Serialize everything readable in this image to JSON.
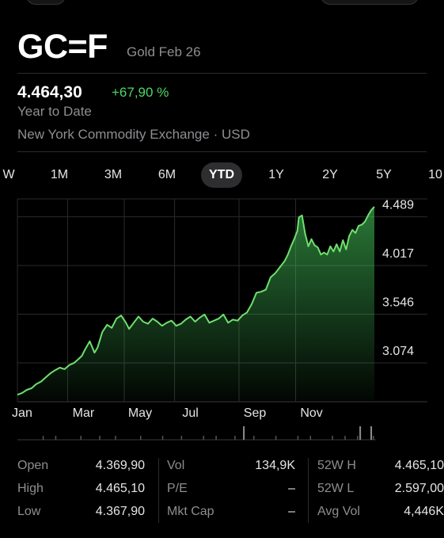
{
  "header": {
    "ticker": "GC=F",
    "subtitle": "Gold Feb 26",
    "price": "4.464,30",
    "change": "+67,90 %",
    "period_label": "Year to Date",
    "exchange": "New York Commodity Exchange · USD"
  },
  "tabs": [
    {
      "label": "W",
      "active": false
    },
    {
      "label": "1M",
      "active": false
    },
    {
      "label": "3M",
      "active": false
    },
    {
      "label": "6M",
      "active": false
    },
    {
      "label": "YTD",
      "active": true
    },
    {
      "label": "1Y",
      "active": false
    },
    {
      "label": "2Y",
      "active": false
    },
    {
      "label": "5Y",
      "active": false
    },
    {
      "label": "10",
      "active": false
    }
  ],
  "chart_data": {
    "type": "area",
    "x_unit": "month",
    "x": [
      0,
      0.15,
      0.3,
      0.45,
      0.6,
      0.75,
      0.9,
      1.05,
      1.2,
      1.35,
      1.5,
      1.65,
      1.8,
      1.95,
      2.05,
      2.15,
      2.3,
      2.45,
      2.55,
      2.7,
      2.85,
      3.0,
      3.15,
      3.3,
      3.45,
      3.55,
      3.7,
      3.85,
      4.0,
      4.15,
      4.3,
      4.45,
      4.6,
      4.75,
      4.9,
      5.05,
      5.2,
      5.35,
      5.5,
      5.65,
      5.8,
      5.95,
      6.1,
      6.25,
      6.4,
      6.55,
      6.7,
      6.85,
      7.0,
      7.15,
      7.3,
      7.45,
      7.6,
      7.75,
      7.9,
      8.05,
      8.2,
      8.35,
      8.5,
      8.6,
      8.7,
      8.8,
      8.9,
      8.95,
      9.05,
      9.15,
      9.25,
      9.35,
      9.45,
      9.55,
      9.65,
      9.75,
      9.85,
      9.95,
      10.05,
      10.15,
      10.25,
      10.35,
      10.45,
      10.55,
      10.65,
      10.75,
      10.85,
      10.95,
      11.05,
      11.15,
      11.25,
      11.35
    ],
    "values": [
      2642,
      2660,
      2690,
      2705,
      2745,
      2770,
      2810,
      2850,
      2880,
      2905,
      2890,
      2930,
      2950,
      2990,
      3020,
      3080,
      3160,
      3050,
      3100,
      3250,
      3320,
      3290,
      3380,
      3410,
      3340,
      3280,
      3340,
      3400,
      3350,
      3330,
      3380,
      3350,
      3310,
      3340,
      3360,
      3310,
      3330,
      3370,
      3400,
      3350,
      3390,
      3420,
      3340,
      3360,
      3380,
      3420,
      3340,
      3370,
      3360,
      3410,
      3440,
      3520,
      3630,
      3640,
      3660,
      3780,
      3820,
      3880,
      3940,
      4000,
      4080,
      4150,
      4230,
      4360,
      4380,
      4200,
      4080,
      4150,
      4090,
      4070,
      4000,
      4020,
      4000,
      4080,
      4030,
      4100,
      4030,
      4140,
      4050,
      4180,
      4240,
      4210,
      4280,
      4290,
      4320,
      4380,
      4430,
      4464
    ],
    "y_ticks": [
      "4.489",
      "4.017",
      "3.546",
      "3.074"
    ],
    "y_tick_values": [
      4489,
      4017,
      3546,
      3074
    ],
    "x_tick_labels": [
      "Jan",
      "Mar",
      "May",
      "Jul",
      "Sep",
      "Nov"
    ],
    "x_tick_values": [
      0.15,
      2.1,
      3.9,
      5.5,
      7.55,
      9.35
    ],
    "ylim": [
      2590,
      4540
    ],
    "xlim": [
      0,
      11.4
    ],
    "grid": true,
    "line_color": "#6ee06e",
    "fill_color": "#4cd964",
    "volume_ticks": [
      0.8,
      1.2,
      2.0,
      2.6,
      3.1,
      3.9,
      4.6,
      5.2,
      5.9,
      6.3,
      6.9,
      7.5,
      8.2,
      8.9,
      9.3,
      10.0,
      10.4,
      10.8,
      11.3
    ],
    "volume_bars": [
      7.2,
      10.9,
      11.25
    ]
  },
  "stats": {
    "col1": [
      {
        "label": "Open",
        "value": "4.369,90"
      },
      {
        "label": "High",
        "value": "4.465,10"
      },
      {
        "label": "Low",
        "value": "4.367,90"
      }
    ],
    "col2": [
      {
        "label": "Vol",
        "value": "134,9K"
      },
      {
        "label": "P/E",
        "value": "–"
      },
      {
        "label": "Mkt Cap",
        "value": "–"
      }
    ],
    "col3": [
      {
        "label": "52W H",
        "value": "4.465,10"
      },
      {
        "label": "52W L",
        "value": "2.597,00"
      },
      {
        "label": "Avg Vol",
        "value": "4,446K"
      }
    ]
  }
}
